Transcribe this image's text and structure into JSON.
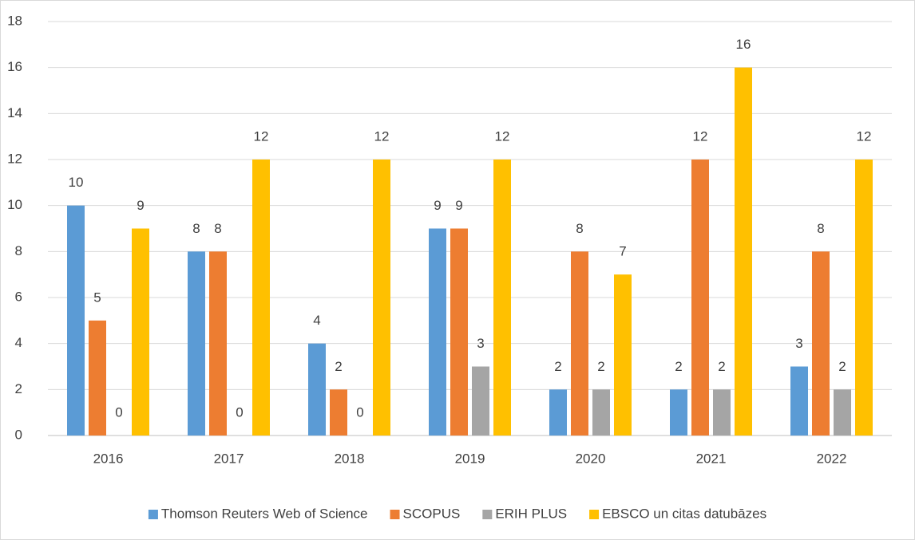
{
  "chart_data": {
    "type": "bar",
    "categories": [
      "2016",
      "2017",
      "2018",
      "2019",
      "2020",
      "2021",
      "2022"
    ],
    "series": [
      {
        "name": "Thomson Reuters Web of Science",
        "color": "#5b9bd5",
        "values": [
          10,
          8,
          4,
          9,
          2,
          2,
          3
        ]
      },
      {
        "name": "SCOPUS",
        "color": "#ed7d31",
        "values": [
          5,
          8,
          2,
          9,
          8,
          12,
          8
        ]
      },
      {
        "name": "ERIH PLUS",
        "color": "#a5a5a5",
        "values": [
          0,
          0,
          0,
          3,
          2,
          2,
          2
        ]
      },
      {
        "name": "EBSCO un citas datubāzes",
        "color": "#ffc000",
        "values": [
          9,
          12,
          12,
          12,
          7,
          16,
          12
        ]
      }
    ],
    "ylim": [
      0,
      18
    ],
    "yticks": [
      0,
      2,
      4,
      6,
      8,
      10,
      12,
      14,
      16,
      18
    ],
    "grid": true,
    "legend": "bottom",
    "data_labels": true
  }
}
